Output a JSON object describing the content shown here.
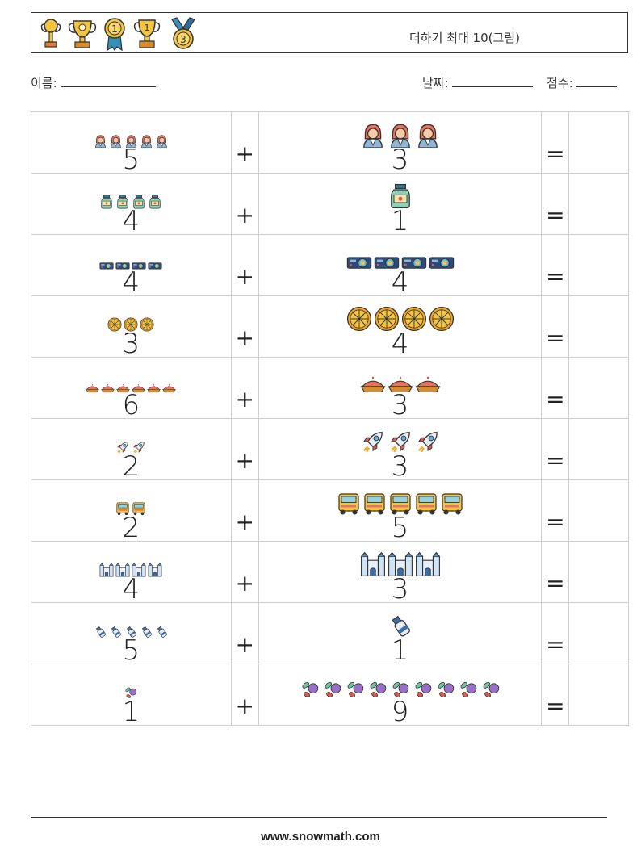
{
  "header": {
    "title": "더하기 최대 10(그림)",
    "trophies": [
      "trophy-icon",
      "cup-icon",
      "medal-1-icon",
      "cup-1-icon",
      "medal-3-icon"
    ]
  },
  "info": {
    "name_label": "이름:",
    "date_label": "날짜:",
    "score_label": "점수:"
  },
  "problems": [
    {
      "left": 5,
      "left_icon": "woman-icon",
      "plus": "+",
      "right": 3,
      "right_icon": "woman-icon",
      "eq": "="
    },
    {
      "left": 4,
      "left_icon": "jar-icon",
      "plus": "+",
      "right": 1,
      "right_icon": "jar-icon",
      "eq": "="
    },
    {
      "left": 4,
      "left_icon": "projector-icon",
      "plus": "+",
      "right": 4,
      "right_icon": "projector-icon",
      "eq": "="
    },
    {
      "left": 3,
      "left_icon": "orange-slice-icon",
      "plus": "+",
      "right": 4,
      "right_icon": "orange-slice-icon",
      "eq": "="
    },
    {
      "left": 6,
      "left_icon": "pie-icon",
      "plus": "+",
      "right": 3,
      "right_icon": "pie-icon",
      "eq": "="
    },
    {
      "left": 2,
      "left_icon": "rocket-icon",
      "plus": "+",
      "right": 3,
      "right_icon": "rocket-icon",
      "eq": "="
    },
    {
      "left": 2,
      "left_icon": "bus-icon",
      "plus": "+",
      "right": 5,
      "right_icon": "bus-icon",
      "eq": "="
    },
    {
      "left": 4,
      "left_icon": "castle-icon",
      "plus": "+",
      "right": 3,
      "right_icon": "castle-icon",
      "eq": "="
    },
    {
      "left": 5,
      "left_icon": "spray-icon",
      "plus": "+",
      "right": 1,
      "right_icon": "spray-icon",
      "eq": "="
    },
    {
      "left": 1,
      "left_icon": "berries-icon",
      "plus": "+",
      "right": 9,
      "right_icon": "berries-icon",
      "eq": "="
    }
  ],
  "footer": {
    "site": "www.snowmath.com"
  }
}
